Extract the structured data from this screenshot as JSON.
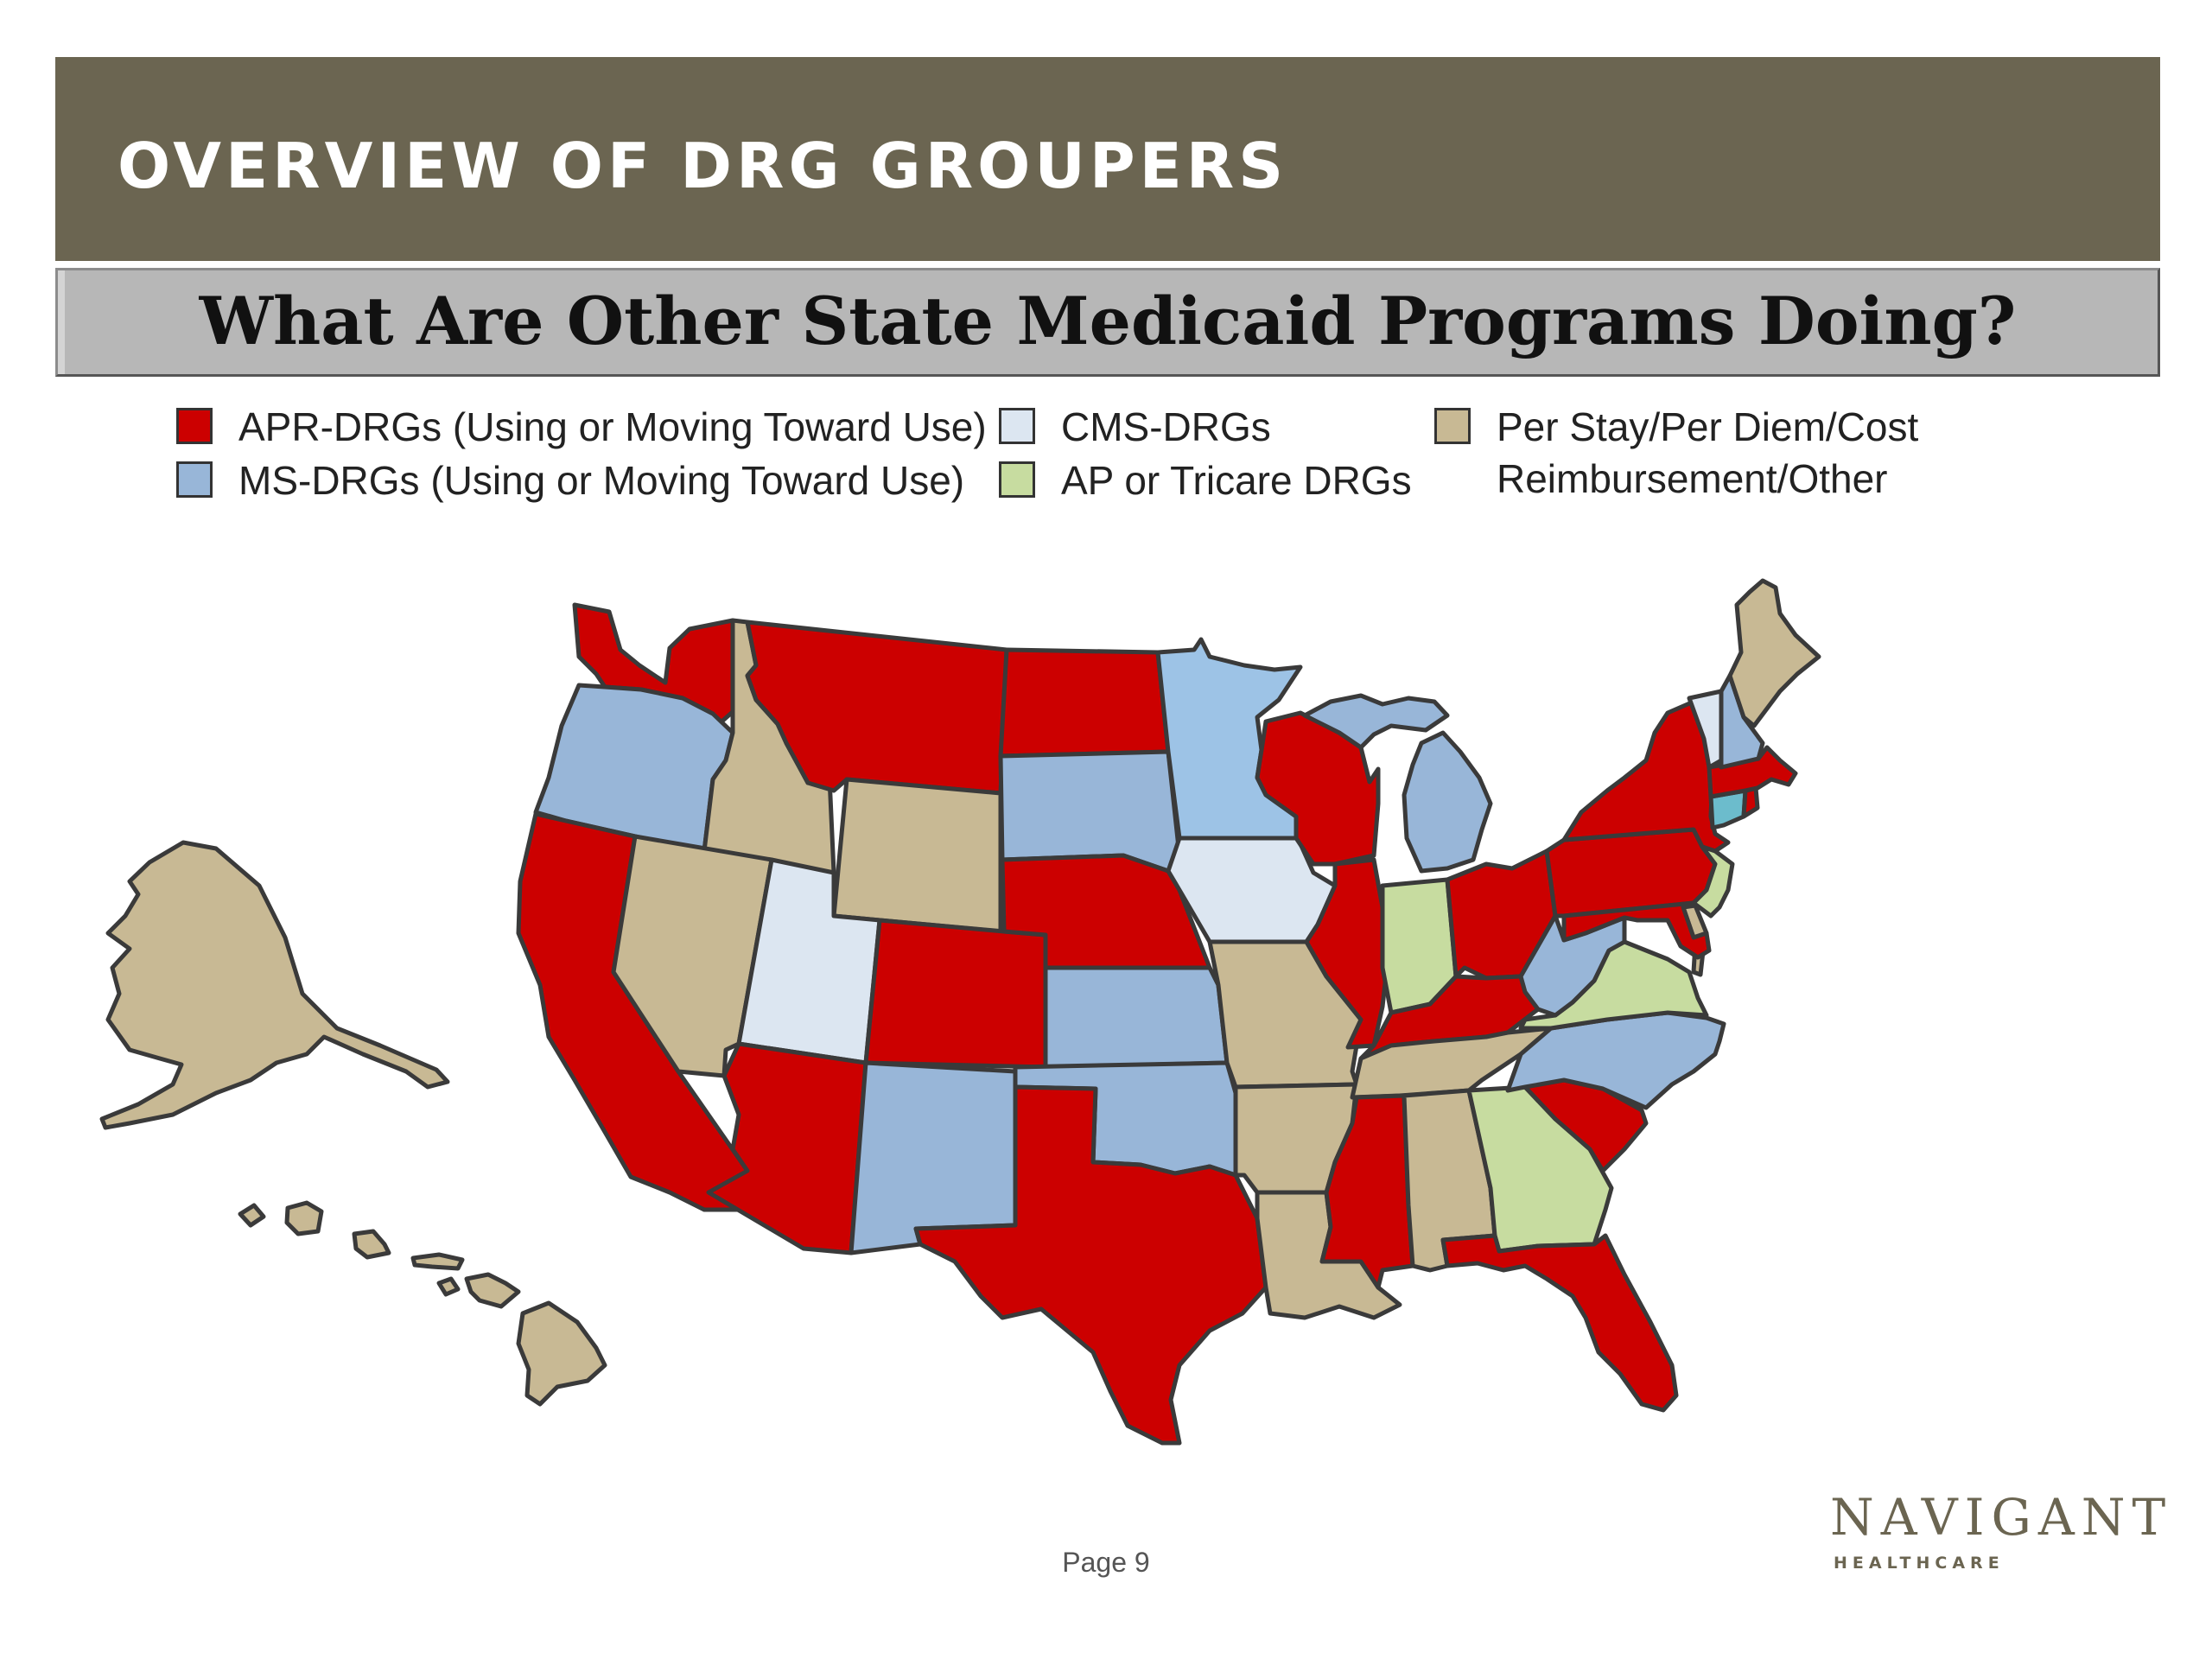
{
  "header": {
    "title": "OVERVIEW OF DRG GROUPERS"
  },
  "subtitle": "What Are Other State Medicaid Programs Doing?",
  "legend": {
    "apr": {
      "label": "APR-DRGs (Using or Moving Toward Use)",
      "color": "#cc0000"
    },
    "ms": {
      "label": "MS-DRGs  (Using or Moving Toward Use)",
      "color": "#98b6d8"
    },
    "cms": {
      "label": "CMS-DRGs",
      "color": "#dce6f1"
    },
    "ap": {
      "label": "AP or Tricare DRGs",
      "color": "#c7dca0"
    },
    "other": {
      "label_line1": "Per Stay/Per Diem/Cost",
      "label_line2": "Reimbursement/Other",
      "color": "#c8b994"
    }
  },
  "map": {
    "extra_colors": {
      "mn": "#9dc3e6",
      "ct": "#6cbccc"
    },
    "states": {
      "AK": "other",
      "HI": "other",
      "WA": "apr",
      "OR": "ms",
      "CA": "apr",
      "ID": "other",
      "NV": "other",
      "MT": "apr",
      "WY": "other",
      "UT": "cms",
      "AZ": "apr",
      "CO": "apr",
      "NM": "ms",
      "ND": "apr",
      "SD": "ms",
      "NE": "apr",
      "KS": "ms",
      "OK": "ms",
      "TX": "apr",
      "MN": "mn",
      "IA": "cms",
      "MO": "other",
      "AR": "other",
      "LA": "other",
      "WI": "apr",
      "IL": "apr",
      "MI": "ms",
      "IN": "ap",
      "OH": "apr",
      "KY": "apr",
      "TN": "other",
      "MS": "apr",
      "AL": "other",
      "GA": "ap",
      "FL": "apr",
      "SC": "apr",
      "NC": "ms",
      "VA": "ap",
      "WV": "ms",
      "PA": "apr",
      "NY": "apr",
      "NJ": "ap",
      "DE": "other",
      "MD": "apr",
      "CT": "ct",
      "RI": "apr",
      "MA": "apr",
      "VT": "cms",
      "NH": "ms",
      "ME": "other"
    }
  },
  "footer": {
    "page": "Page 9"
  },
  "logo": {
    "word": "NAVIGANT",
    "sub": "HEALTHCARE"
  }
}
